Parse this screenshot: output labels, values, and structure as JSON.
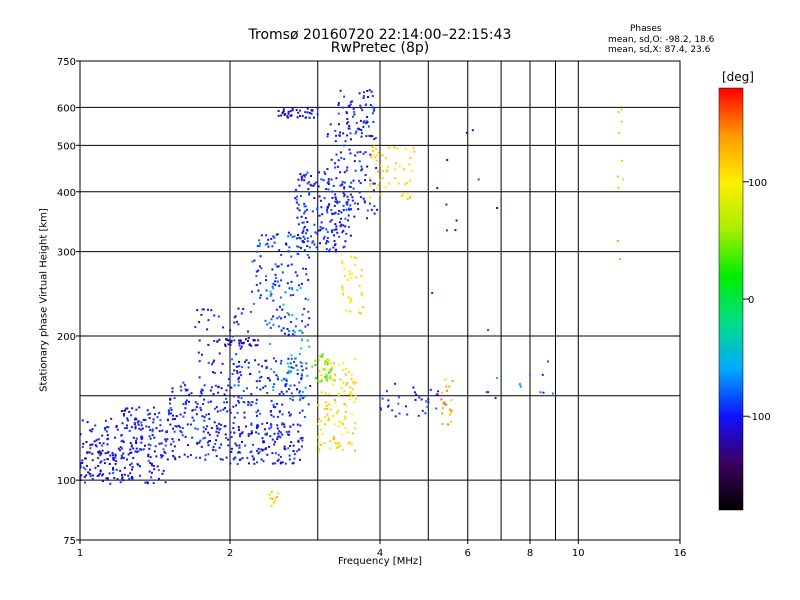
{
  "title_line1": "Tromsø 20160720 22:14:00–22:15:43",
  "title_line2": "RwPretec (8p)",
  "phases": {
    "title": "Phases",
    "o_line": "mean, sd,O: -98.2, 18.6",
    "x_line": "mean, sd,X:  87.4, 23.6"
  },
  "chart_data": {
    "type": "scatter",
    "title": "Tromsø 20160720 22:14:00–22:15:43",
    "subtitle": "RwPretec (8p)",
    "xlabel": "Frequency [MHz]",
    "ylabel": "Stationary phase Virtual Height [km]",
    "x_scale": "log2",
    "y_scale": "log",
    "xlim": [
      1,
      16
    ],
    "ylim": [
      75,
      750
    ],
    "x_ticks": [
      1,
      2,
      4,
      6,
      8,
      10,
      16
    ],
    "x_minor_ticks": [
      3,
      5,
      7,
      9
    ],
    "y_ticks": [
      75,
      100,
      200,
      300,
      400,
      500,
      600,
      750
    ],
    "y_minor_ticks": [
      150
    ],
    "grid": true,
    "colorbar": {
      "title": "[deg]",
      "range": [
        -180,
        180
      ],
      "ticks": [
        -100,
        0,
        100
      ],
      "colors": [
        "#000000",
        "#3c0060",
        "#1010ff",
        "#00aaff",
        "#00dd88",
        "#00ee00",
        "#aaee00",
        "#ffee00",
        "#ff9900",
        "#ff0000"
      ]
    },
    "clusters": [
      {
        "x": [
          1.0,
          1.5
        ],
        "y": [
          98,
          135
        ],
        "phase": -100,
        "n": 180
      },
      {
        "x": [
          1.0,
          1.3
        ],
        "y": [
          100,
          122
        ],
        "phase": -115,
        "n": 70
      },
      {
        "x": [
          1.5,
          2.0
        ],
        "y": [
          110,
          160
        ],
        "phase": -100,
        "n": 170
      },
      {
        "x": [
          1.2,
          1.45
        ],
        "y": [
          128,
          142
        ],
        "phase": -105,
        "n": 40
      },
      {
        "x": [
          2.0,
          2.8
        ],
        "y": [
          108,
          132
        ],
        "phase": -100,
        "n": 150
      },
      {
        "x": [
          2.0,
          2.9
        ],
        "y": [
          135,
          180
        ],
        "phase": -95,
        "n": 140
      },
      {
        "x": [
          1.7,
          2.2
        ],
        "y": [
          160,
          230
        ],
        "phase": -105,
        "n": 60
      },
      {
        "x": [
          1.85,
          2.3
        ],
        "y": [
          190,
          197
        ],
        "phase": -120,
        "n": 30
      },
      {
        "x": [
          2.2,
          2.9
        ],
        "y": [
          200,
          330
        ],
        "phase": -90,
        "n": 140
      },
      {
        "x": [
          2.4,
          2.9
        ],
        "y": [
          145,
          260
        ],
        "phase": -45,
        "n": 40
      },
      {
        "x": [
          2.7,
          3.5
        ],
        "y": [
          300,
          440
        ],
        "phase": -100,
        "n": 170
      },
      {
        "x": [
          3.1,
          3.95
        ],
        "y": [
          350,
          560
        ],
        "phase": -100,
        "n": 110
      },
      {
        "x": [
          3.3,
          3.9
        ],
        "y": [
          520,
          660
        ],
        "phase": -100,
        "n": 60
      },
      {
        "x": [
          2.5,
          3.0
        ],
        "y": [
          570,
          600
        ],
        "phase": -110,
        "n": 40
      },
      {
        "x": [
          3.0,
          3.6
        ],
        "y": [
          115,
          180
        ],
        "phase": 110,
        "n": 120
      },
      {
        "x": [
          2.9,
          3.2
        ],
        "y": [
          160,
          185
        ],
        "phase": 40,
        "n": 25
      },
      {
        "x": [
          3.35,
          3.7
        ],
        "y": [
          220,
          300
        ],
        "phase": 100,
        "n": 35
      },
      {
        "x": [
          3.8,
          4.7
        ],
        "y": [
          385,
          500
        ],
        "phase": 105,
        "n": 55
      },
      {
        "x": [
          4.0,
          5.5
        ],
        "y": [
          135,
          160
        ],
        "phase": -95,
        "n": 35
      },
      {
        "x": [
          5.3,
          5.6
        ],
        "y": [
          130,
          165
        ],
        "phase": 130,
        "n": 20
      },
      {
        "x": [
          2.4,
          2.5
        ],
        "y": [
          88,
          97
        ],
        "phase": 120,
        "n": 10
      },
      {
        "x": [
          12.0,
          12.3
        ],
        "y": [
          280,
          640
        ],
        "phase": 60,
        "n": 10
      },
      {
        "x": [
          6.5,
          9.0
        ],
        "y": [
          140,
          180
        ],
        "phase": -80,
        "n": 12
      },
      {
        "x": [
          5.0,
          7.0
        ],
        "y": [
          200,
          600
        ],
        "phase": -100,
        "n": 12
      }
    ]
  }
}
